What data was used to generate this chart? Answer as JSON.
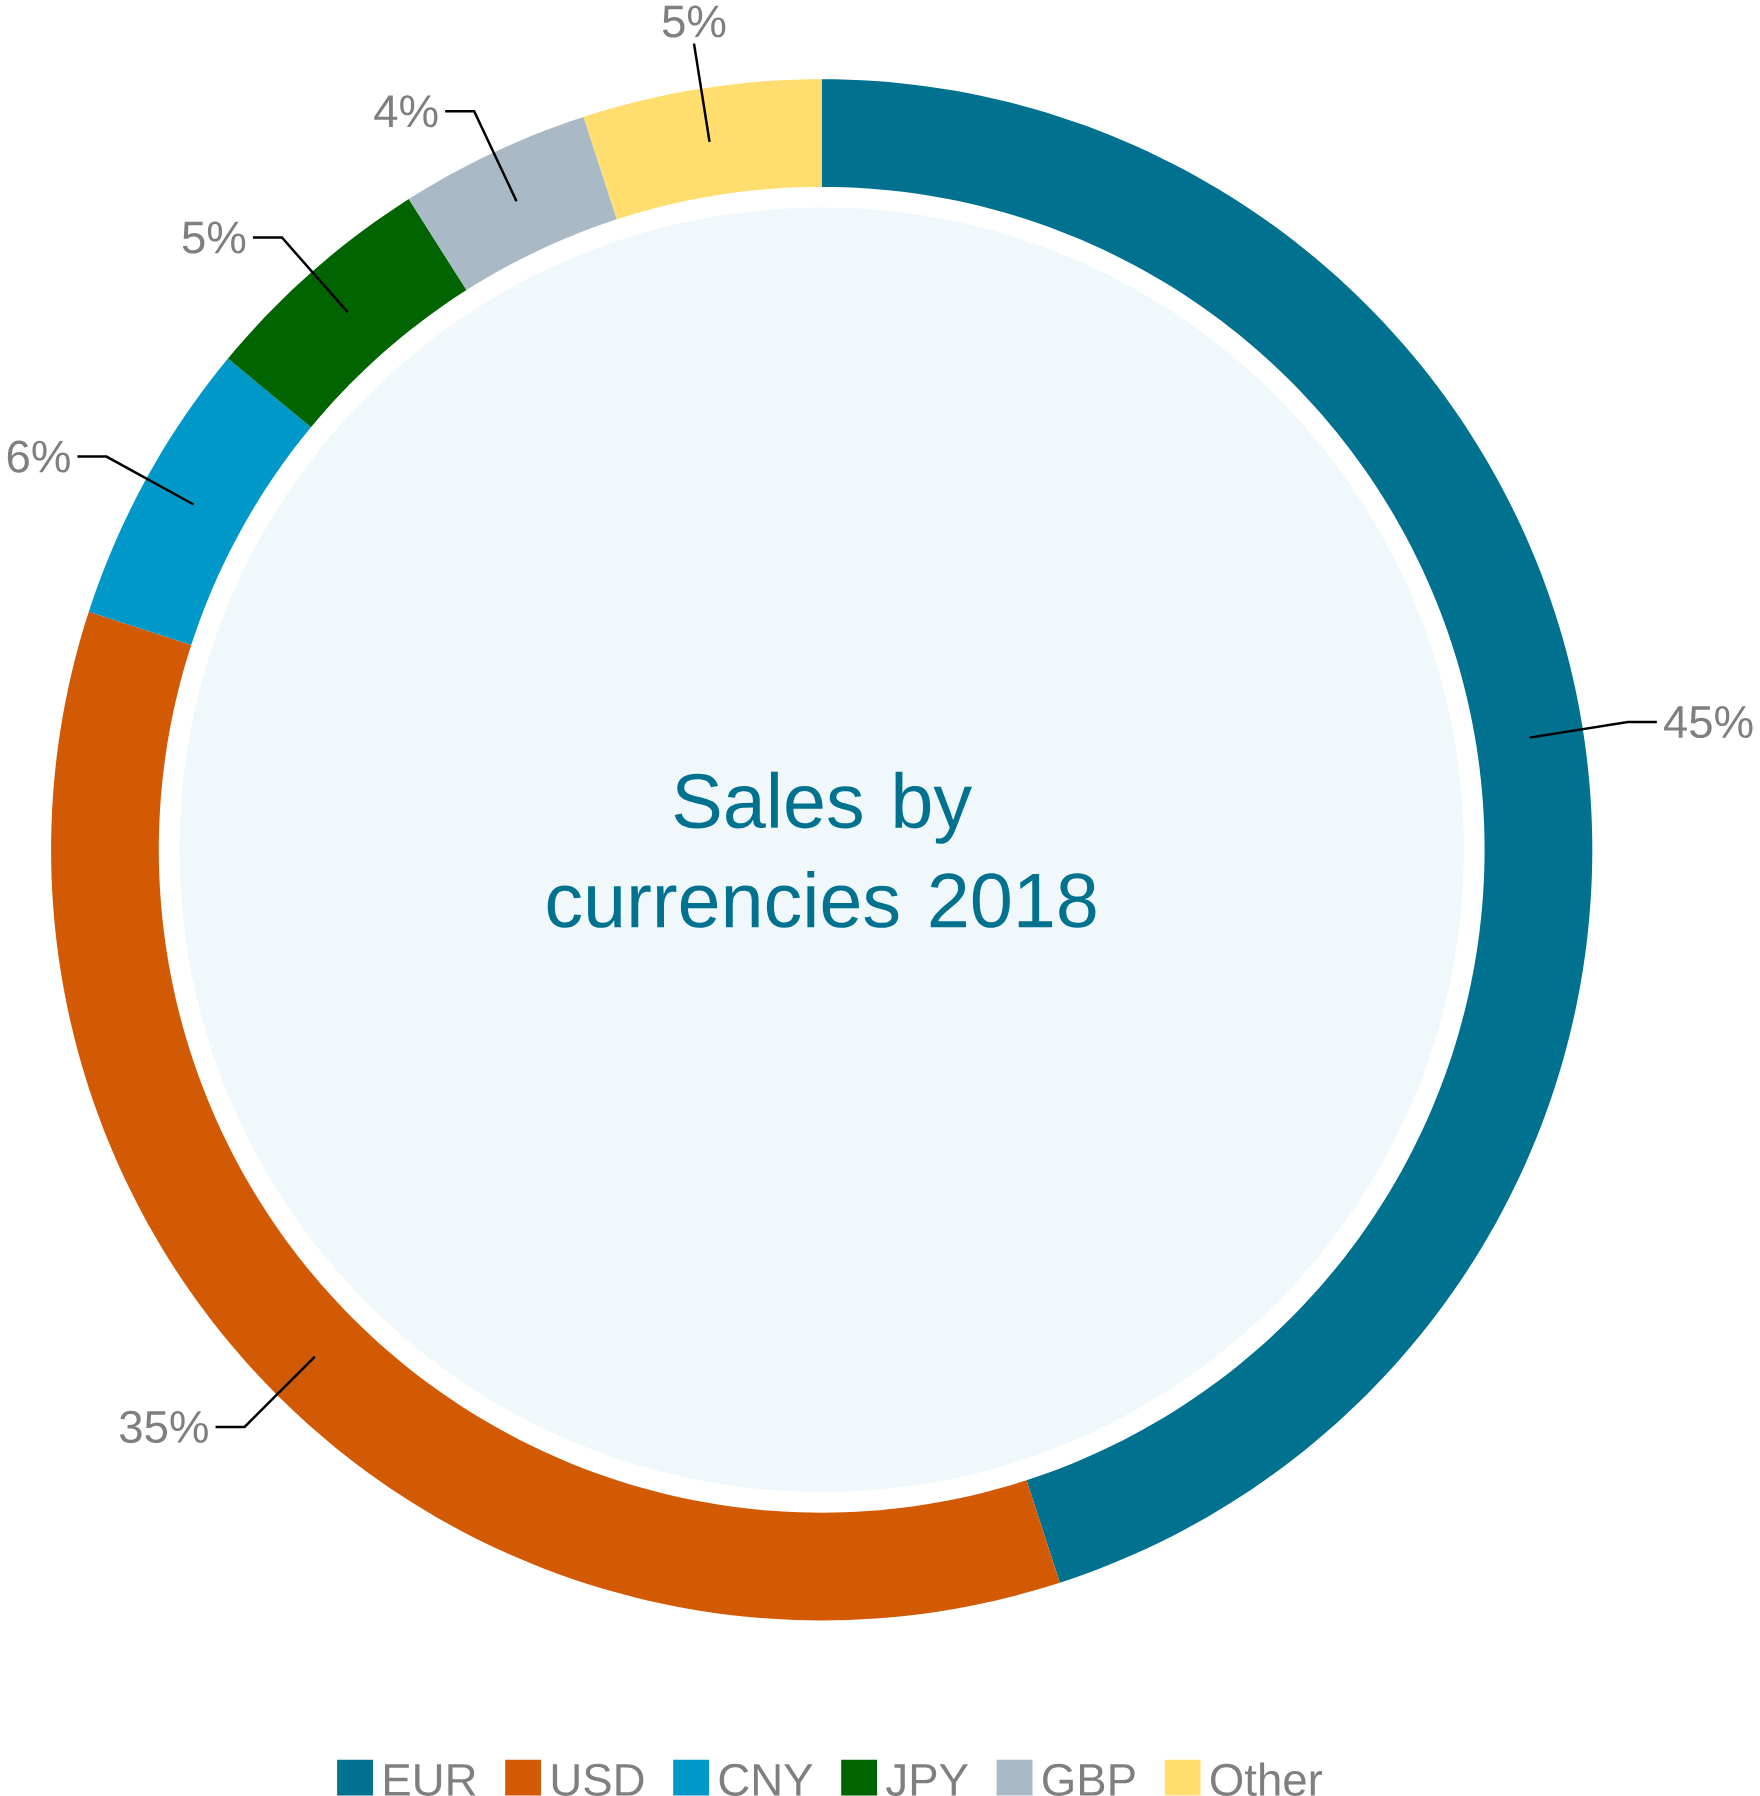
{
  "chart_data": {
    "type": "donut",
    "title": "Sales by currencies 2018",
    "categories": [
      "EUR",
      "USD",
      "CNY",
      "JPY",
      "GBP",
      "Other"
    ],
    "values": [
      45,
      35,
      6,
      5,
      4,
      5
    ],
    "value_labels": [
      "45%",
      "35%",
      "6%",
      "5%",
      "4%",
      "5%"
    ],
    "colors": [
      "#00728f",
      "#d35a04",
      "#0098c8",
      "#006400",
      "#a9b9c5",
      "#ffdd6e"
    ],
    "legend": "bottom"
  }
}
